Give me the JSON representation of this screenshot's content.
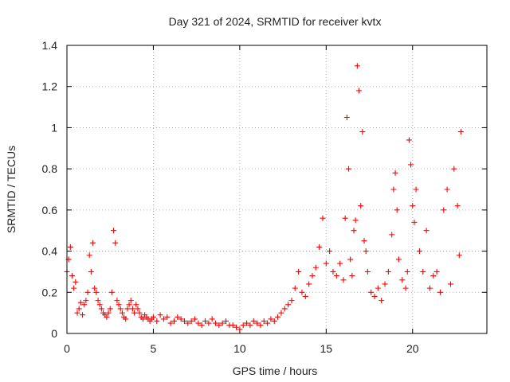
{
  "chart_data": {
    "type": "scatter",
    "title": "Day 321 of 2024, SRMTID for receiver kvtx",
    "xlabel": "GPS time / hours",
    "ylabel": "SRMTID / TECUs",
    "xlim": [
      0,
      24.3
    ],
    "ylim": [
      0,
      1.4
    ],
    "xticks": [
      0,
      5,
      10,
      15,
      20
    ],
    "xtick_labels": [
      "0",
      "5",
      "10",
      "15",
      "20"
    ],
    "yticks": [
      0,
      0.2,
      0.4,
      0.6,
      0.8,
      1.0,
      1.2,
      1.4
    ],
    "ytick_labels": [
      "0",
      "0.2",
      "0.4",
      "0.6",
      "0.8",
      "1",
      "1.2",
      "1.4"
    ],
    "grid": true,
    "marker": "+",
    "color": "#ff0000",
    "series": [
      {
        "name": "SRMTID",
        "x": [
          0.0,
          0.1,
          0.2,
          0.3,
          0.4,
          0.5,
          0.6,
          0.7,
          0.8,
          0.9,
          1.0,
          1.1,
          1.2,
          1.3,
          1.4,
          1.5,
          1.6,
          1.7,
          1.8,
          1.9,
          2.0,
          2.1,
          2.2,
          2.3,
          2.4,
          2.5,
          2.6,
          2.7,
          2.8,
          2.9,
          3.0,
          3.1,
          3.2,
          3.3,
          3.4,
          3.5,
          3.6,
          3.7,
          3.8,
          3.9,
          4.0,
          4.1,
          4.2,
          4.3,
          4.4,
          4.5,
          4.6,
          4.7,
          4.8,
          4.9,
          5.0,
          5.2,
          5.4,
          5.6,
          5.8,
          6.0,
          6.2,
          6.4,
          6.6,
          6.8,
          7.0,
          7.2,
          7.4,
          7.6,
          7.8,
          8.0,
          8.2,
          8.4,
          8.6,
          8.8,
          9.0,
          9.2,
          9.4,
          9.6,
          9.8,
          10.0,
          10.2,
          10.4,
          10.6,
          10.8,
          11.0,
          11.2,
          11.4,
          11.6,
          11.8,
          12.0,
          12.2,
          12.4,
          12.6,
          12.8,
          13.0,
          13.2,
          13.4,
          13.6,
          13.8,
          14.0,
          14.2,
          14.4,
          14.6,
          14.8,
          15.0,
          15.2,
          15.4,
          15.6,
          15.8,
          16.0,
          16.1,
          16.2,
          16.3,
          16.4,
          16.5,
          16.6,
          16.7,
          16.8,
          16.9,
          17.0,
          17.1,
          17.2,
          17.3,
          17.4,
          17.6,
          17.8,
          18.0,
          18.2,
          18.4,
          18.6,
          18.8,
          18.9,
          19.0,
          19.1,
          19.2,
          19.4,
          19.6,
          19.7,
          19.8,
          19.9,
          20.0,
          20.1,
          20.2,
          20.4,
          20.6,
          20.8,
          21.0,
          21.2,
          21.4,
          21.6,
          21.8,
          22.0,
          22.2,
          22.4,
          22.6,
          22.7,
          22.8
        ],
        "y": [
          0.3,
          0.36,
          0.42,
          0.28,
          0.22,
          0.25,
          0.1,
          0.12,
          0.15,
          0.09,
          0.14,
          0.16,
          0.2,
          0.38,
          0.3,
          0.44,
          0.22,
          0.2,
          0.16,
          0.14,
          0.12,
          0.1,
          0.09,
          0.08,
          0.1,
          0.12,
          0.2,
          0.5,
          0.44,
          0.16,
          0.14,
          0.12,
          0.1,
          0.08,
          0.07,
          0.12,
          0.14,
          0.16,
          0.12,
          0.1,
          0.14,
          0.12,
          0.1,
          0.08,
          0.07,
          0.09,
          0.08,
          0.07,
          0.06,
          0.07,
          0.08,
          0.06,
          0.09,
          0.07,
          0.08,
          0.05,
          0.06,
          0.08,
          0.07,
          0.06,
          0.05,
          0.06,
          0.07,
          0.05,
          0.04,
          0.06,
          0.05,
          0.07,
          0.05,
          0.04,
          0.05,
          0.06,
          0.04,
          0.04,
          0.03,
          0.02,
          0.04,
          0.05,
          0.04,
          0.06,
          0.05,
          0.04,
          0.06,
          0.05,
          0.07,
          0.06,
          0.08,
          0.1,
          0.12,
          0.14,
          0.16,
          0.22,
          0.3,
          0.2,
          0.18,
          0.24,
          0.28,
          0.32,
          0.42,
          0.56,
          0.34,
          0.4,
          0.3,
          0.28,
          0.34,
          0.26,
          0.56,
          1.05,
          0.8,
          0.36,
          0.28,
          0.5,
          0.55,
          1.3,
          1.18,
          0.62,
          0.98,
          0.45,
          0.4,
          0.3,
          0.2,
          0.18,
          0.22,
          0.16,
          0.24,
          0.3,
          0.48,
          0.7,
          0.78,
          0.6,
          0.36,
          0.26,
          0.22,
          0.3,
          0.94,
          0.82,
          0.62,
          0.54,
          0.7,
          0.4,
          0.3,
          0.5,
          0.22,
          0.28,
          0.3,
          0.2,
          0.6,
          0.7,
          0.24,
          0.8,
          0.62,
          0.38,
          0.98
        ]
      }
    ]
  }
}
